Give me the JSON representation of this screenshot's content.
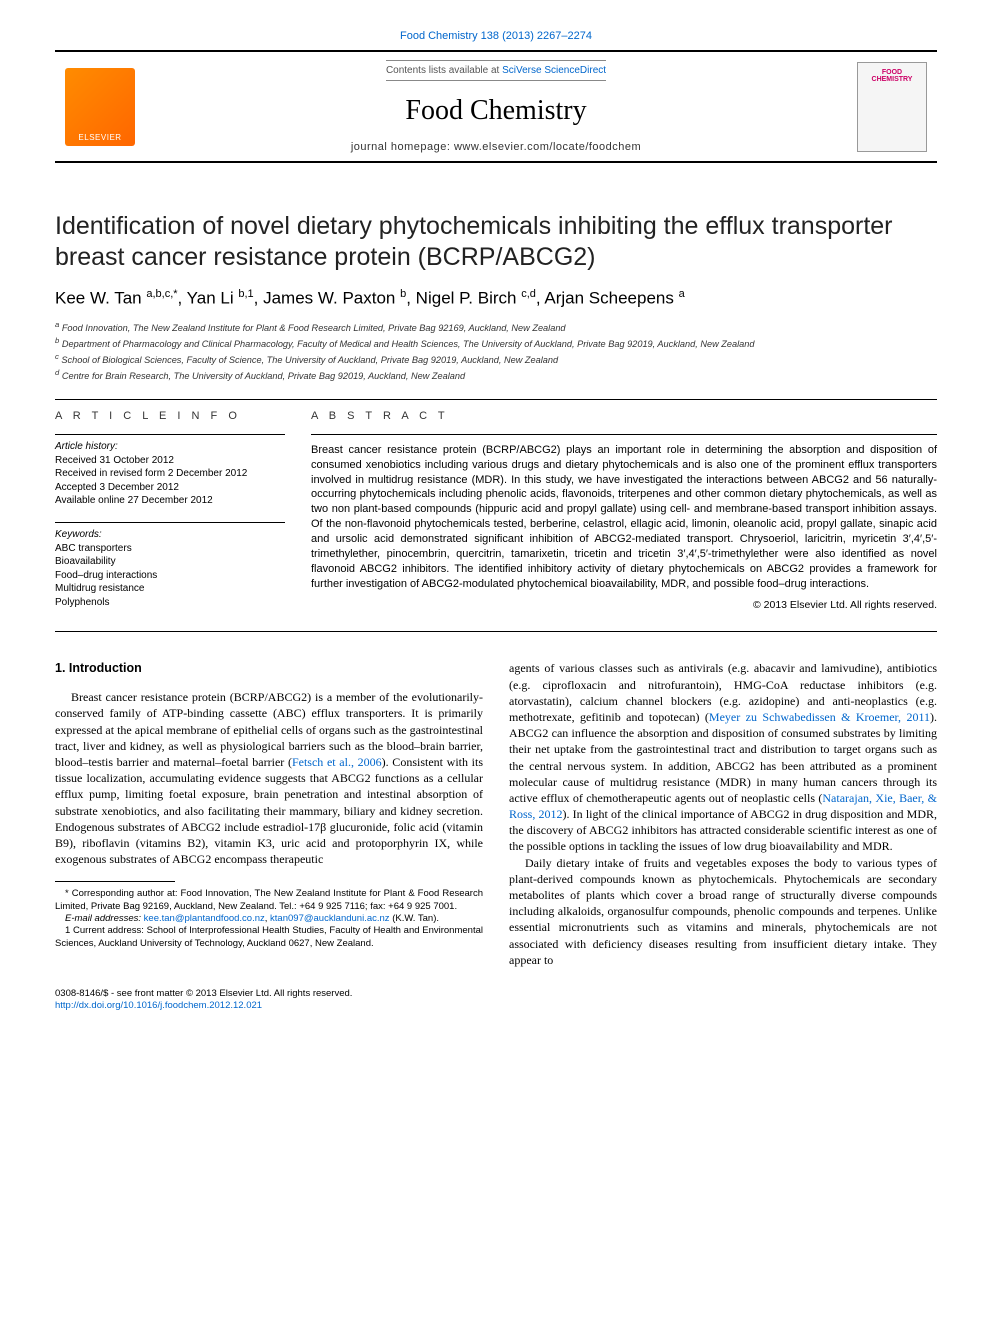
{
  "top_citation": "Food Chemistry 138 (2013) 2267–2274",
  "banner": {
    "contents_prefix": "Contents lists available at ",
    "contents_link": "SciVerse ScienceDirect",
    "journal_name": "Food Chemistry",
    "homepage": "journal homepage: www.elsevier.com/locate/foodchem",
    "elsevier_label": "ELSEVIER",
    "cover_title": "FOOD CHEMISTRY"
  },
  "article": {
    "title": "Identification of novel dietary phytochemicals inhibiting the efflux transporter breast cancer resistance protein (BCRP/ABCG2)",
    "authors_html": "Kee W. Tan <sup>a,b,c,*</sup>, Yan Li <sup>b,1</sup>, James W. Paxton <sup>b</sup>, Nigel P. Birch <sup>c,d</sup>, Arjan Scheepens <sup>a</sup>",
    "affiliations": [
      "a Food Innovation, The New Zealand Institute for Plant & Food Research Limited, Private Bag 92169, Auckland, New Zealand",
      "b Department of Pharmacology and Clinical Pharmacology, Faculty of Medical and Health Sciences, The University of Auckland, Private Bag 92019, Auckland, New Zealand",
      "c School of Biological Sciences, Faculty of Science, The University of Auckland, Private Bag 92019, Auckland, New Zealand",
      "d Centre for Brain Research, The University of Auckland, Private Bag 92019, Auckland, New Zealand"
    ]
  },
  "info": {
    "heading": "A R T I C L E   I N F O",
    "history_label": "Article history:",
    "history": [
      "Received 31 October 2012",
      "Received in revised form 2 December 2012",
      "Accepted 3 December 2012",
      "Available online 27 December 2012"
    ],
    "keywords_label": "Keywords:",
    "keywords": [
      "ABC transporters",
      "Bioavailability",
      "Food–drug interactions",
      "Multidrug resistance",
      "Polyphenols"
    ]
  },
  "abstract": {
    "heading": "A B S T R A C T",
    "text": "Breast cancer resistance protein (BCRP/ABCG2) plays an important role in determining the absorption and disposition of consumed xenobiotics including various drugs and dietary phytochemicals and is also one of the prominent efflux transporters involved in multidrug resistance (MDR). In this study, we have investigated the interactions between ABCG2 and 56 naturally-occurring phytochemicals including phenolic acids, flavonoids, triterpenes and other common dietary phytochemicals, as well as two non plant-based compounds (hippuric acid and propyl gallate) using cell- and membrane-based transport inhibition assays. Of the non-flavonoid phytochemicals tested, berberine, celastrol, ellagic acid, limonin, oleanolic acid, propyl gallate, sinapic acid and ursolic acid demonstrated significant inhibition of ABCG2-mediated transport. Chrysoeriol, laricitrin, myricetin 3′,4′,5′-trimethylether, pinocembrin, quercitrin, tamarixetin, tricetin and tricetin 3′,4′,5′-trimethylether were also identified as novel flavonoid ABCG2 inhibitors. The identified inhibitory activity of dietary phytochemicals on ABCG2 provides a framework for further investigation of ABCG2-modulated phytochemical bioavailability, MDR, and possible food–drug interactions.",
    "copyright": "© 2013 Elsevier Ltd. All rights reserved."
  },
  "body": {
    "intro_heading": "1. Introduction",
    "left_p1_a": "Breast cancer resistance protein (BCRP/ABCG2) is a member of the evolutionarily-conserved family of ATP-binding cassette (ABC) efflux transporters. It is primarily expressed at the apical membrane of epithelial cells of organs such as the gastrointestinal tract, liver and kidney, as well as physiological barriers such as the blood–brain barrier, blood–testis barrier and maternal–foetal barrier (",
    "left_cite1": "Fetsch et al., 2006",
    "left_p1_b": "). Consistent with its tissue localization, accumulating evidence suggests that ABCG2 functions as a cellular efflux pump, limiting foetal exposure, brain penetration and intestinal absorption of substrate xenobiotics, and also facilitating their mammary, biliary and kidney secretion. Endogenous substrates of ABCG2 include estradiol-17β glucuronide, folic acid (vitamin B9), riboflavin (vitamins B2), vitamin K3, uric acid and protoporphyrin IX, while exogenous substrates of ABCG2 encompass therapeutic",
    "right_p1_a": "agents of various classes such as antivirals (e.g. abacavir and lamivudine), antibiotics (e.g. ciprofloxacin and nitrofurantoin), HMG-CoA reductase inhibitors (e.g. atorvastatin), calcium channel blockers (e.g. azidopine) and anti-neoplastics (e.g. methotrexate, gefitinib and topotecan) (",
    "right_cite1": "Meyer zu Schwabedissen & Kroemer, 2011",
    "right_p1_b": "). ABCG2 can influence the absorption and disposition of consumed substrates by limiting their net uptake from the gastrointestinal tract and distribution to target organs such as the central nervous system. In addition, ABCG2 has been attributed as a prominent molecular cause of multidrug resistance (MDR) in many human cancers through its active efflux of chemotherapeutic agents out of neoplastic cells (",
    "right_cite2": "Natarajan, Xie, Baer, & Ross, 2012",
    "right_p1_c": "). In light of the clinical importance of ABCG2 in drug disposition and MDR, the discovery of ABCG2 inhibitors has attracted considerable scientific interest as one of the possible options in tackling the issues of low drug bioavailability and MDR.",
    "right_p2": "Daily dietary intake of fruits and vegetables exposes the body to various types of plant-derived compounds known as phytochemicals. Phytochemicals are secondary metabolites of plants which cover a broad range of structurally diverse compounds including alkaloids, organosulfur compounds, phenolic compounds and terpenes. Unlike essential micronutrients such as vitamins and minerals, phytochemicals are not associated with deficiency diseases resulting from insufficient dietary intake. They appear to"
  },
  "footnotes": {
    "corr": "* Corresponding author at: Food Innovation, The New Zealand Institute for Plant & Food Research Limited, Private Bag 92169, Auckland, New Zealand. Tel.: +64 9 925 7116; fax: +64 9 925 7001.",
    "email_label": "E-mail addresses: ",
    "email1": "kee.tan@plantandfood.co.nz",
    "email_sep": ", ",
    "email2": "ktan097@aucklanduni.ac.nz",
    "email_suffix": " (K.W. Tan).",
    "fn1": "1 Current address: School of Interprofessional Health Studies, Faculty of Health and Environmental Sciences, Auckland University of Technology, Auckland 0627, New Zealand."
  },
  "bottom": {
    "line1": "0308-8146/$ - see front matter © 2013 Elsevier Ltd. All rights reserved.",
    "doi": "http://dx.doi.org/10.1016/j.foodchem.2012.12.021"
  },
  "colors": {
    "link": "#0066cc",
    "elsevier_bg": "#ff7a00",
    "cover_title": "#cc0066"
  }
}
